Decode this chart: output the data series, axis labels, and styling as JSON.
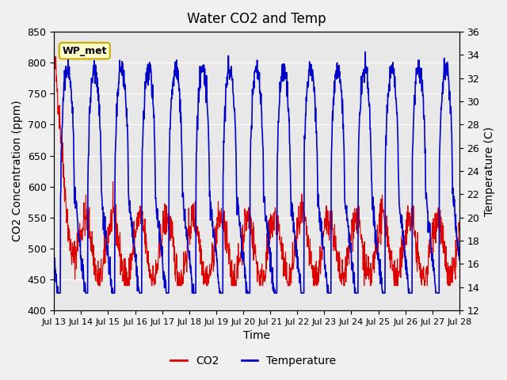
{
  "title": "Water CO2 and Temp",
  "xlabel": "Time",
  "ylabel_left": "CO2 Concentration (ppm)",
  "ylabel_right": "Temperature (C)",
  "ylim_left": [
    400,
    850
  ],
  "ylim_right": [
    12,
    36
  ],
  "yticks_left": [
    400,
    450,
    500,
    550,
    600,
    650,
    700,
    750,
    800,
    850
  ],
  "yticks_right": [
    12,
    14,
    16,
    18,
    20,
    22,
    24,
    26,
    28,
    30,
    32,
    34,
    36
  ],
  "xtick_labels": [
    "Jul 13",
    "Jul 14",
    "Jul 15",
    "Jul 16",
    "Jul 17",
    "Jul 18",
    "Jul 19",
    "Jul 20",
    "Jul 21",
    "Jul 22",
    "Jul 23",
    "Jul 24",
    "Jul 25",
    "Jul 26",
    "Jul 27",
    "Jul 28"
  ],
  "co2_color": "#dd0000",
  "temp_color": "#0000cc",
  "fig_bg_color": "#f0f0f0",
  "plot_bg_color": "#e8e8e8",
  "grid_color": "#ffffff",
  "annotation_text": "WP_met",
  "annotation_bg": "#ffffcc",
  "annotation_border": "#ccaa00",
  "legend_co2": "CO2",
  "legend_temp": "Temperature",
  "num_points": 1440
}
